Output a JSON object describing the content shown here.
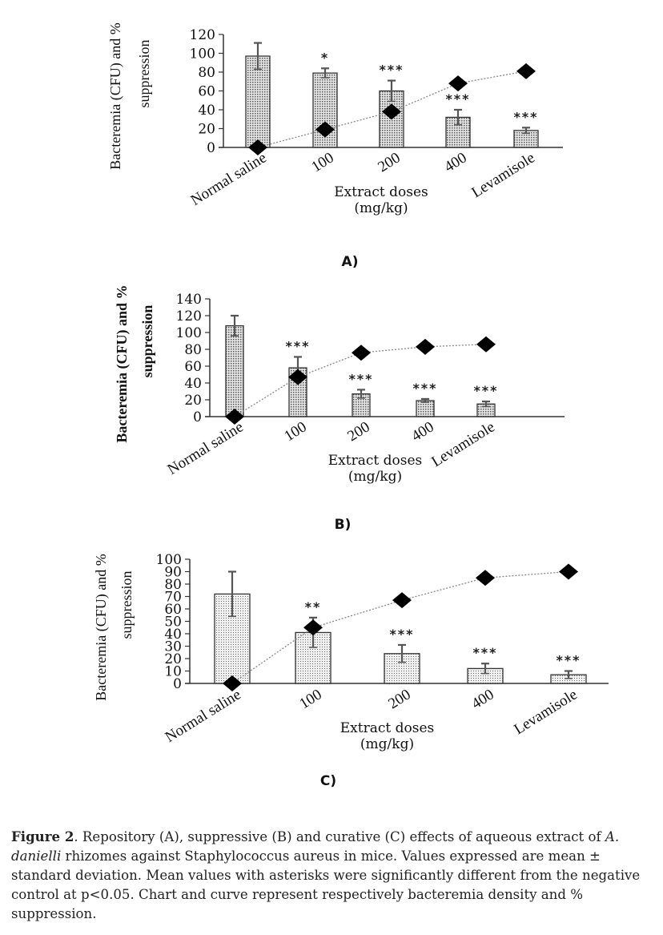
{
  "chart_data": [
    {
      "type": "bar",
      "panel_label": "A)",
      "xlabel": "Extract doses",
      "xlabel_unit": "(mg/kg)",
      "ylabel_line1": "Bacteremia (CFU) and %",
      "ylabel_line2": "suppression",
      "ylim": [
        0,
        120
      ],
      "yticks": [
        "0",
        "20",
        "40",
        "60",
        "80",
        "100",
        "120"
      ],
      "categories": [
        "Normal saline",
        "100",
        "200",
        "400",
        "Levamisole"
      ],
      "series": [
        {
          "name": "Bacteremia (CFU)",
          "kind": "bar",
          "values": [
            97,
            79,
            60,
            32,
            18
          ],
          "errors": [
            14,
            5,
            11,
            8,
            3
          ]
        },
        {
          "name": "% suppression",
          "kind": "line",
          "values": [
            0,
            19,
            38,
            68,
            81
          ]
        }
      ],
      "significance": [
        "",
        "*",
        "***",
        "***",
        "***"
      ]
    },
    {
      "type": "bar",
      "panel_label": "B)",
      "xlabel": "Extract doses",
      "xlabel_unit": "(mg/kg)",
      "ylabel_line1": "Bacteremia (CFU) and %",
      "ylabel_line2": "suppression",
      "ylim": [
        0,
        140
      ],
      "yticks": [
        "0",
        "20",
        "40",
        "60",
        "80",
        "100",
        "120",
        "140"
      ],
      "categories": [
        "Normal saline",
        "100",
        "200",
        "400",
        "Levamisole"
      ],
      "series": [
        {
          "name": "Bacteremia (CFU)",
          "kind": "bar",
          "values": [
            108,
            58,
            27,
            19,
            15
          ],
          "errors": [
            12,
            13,
            5,
            2,
            3
          ]
        },
        {
          "name": "% suppression",
          "kind": "line",
          "values": [
            0,
            47,
            76,
            83,
            86
          ]
        }
      ],
      "significance": [
        "",
        "***",
        "***",
        "***",
        "***"
      ]
    },
    {
      "type": "bar",
      "panel_label": "C)",
      "xlabel": "Extract doses",
      "xlabel_unit": "(mg/kg)",
      "ylabel_line1": "Bacteremia (CFU) and %",
      "ylabel_line2": "suppression",
      "ylim": [
        0,
        100
      ],
      "yticks": [
        "0",
        "10",
        "20",
        "30",
        "40",
        "50",
        "60",
        "70",
        "80",
        "90",
        "100"
      ],
      "categories": [
        "Normal saline",
        "100",
        "200",
        "400",
        "Levamisole"
      ],
      "series": [
        {
          "name": "Bacteremia (CFU)",
          "kind": "bar",
          "values": [
            72,
            41,
            24,
            12,
            7
          ],
          "errors": [
            18,
            12,
            7,
            4,
            3
          ]
        },
        {
          "name": "% suppression",
          "kind": "line",
          "values": [
            0,
            45,
            67,
            85,
            90
          ]
        }
      ],
      "significance": [
        "",
        "**",
        "***",
        "***",
        "***"
      ]
    }
  ],
  "caption": {
    "label": "Figure 2",
    "text_1": ". Repository (A), suppressive (B) and curative (C) effects of aqueous extract of ",
    "italic_1": "A. danielli",
    "text_2": " rhizomes against Staphylococcus aureus in mice. Values expressed are mean ± standard deviation. Mean values with asterisks were significantly different from the negative control at p<0.05. Chart and curve represent respectively bacteremia density and % suppression."
  },
  "colors": {
    "bar_fill": "#cfcfcf",
    "bar_stroke": "#333333",
    "line": "#888888",
    "marker": "#000000",
    "text": "#111111"
  }
}
